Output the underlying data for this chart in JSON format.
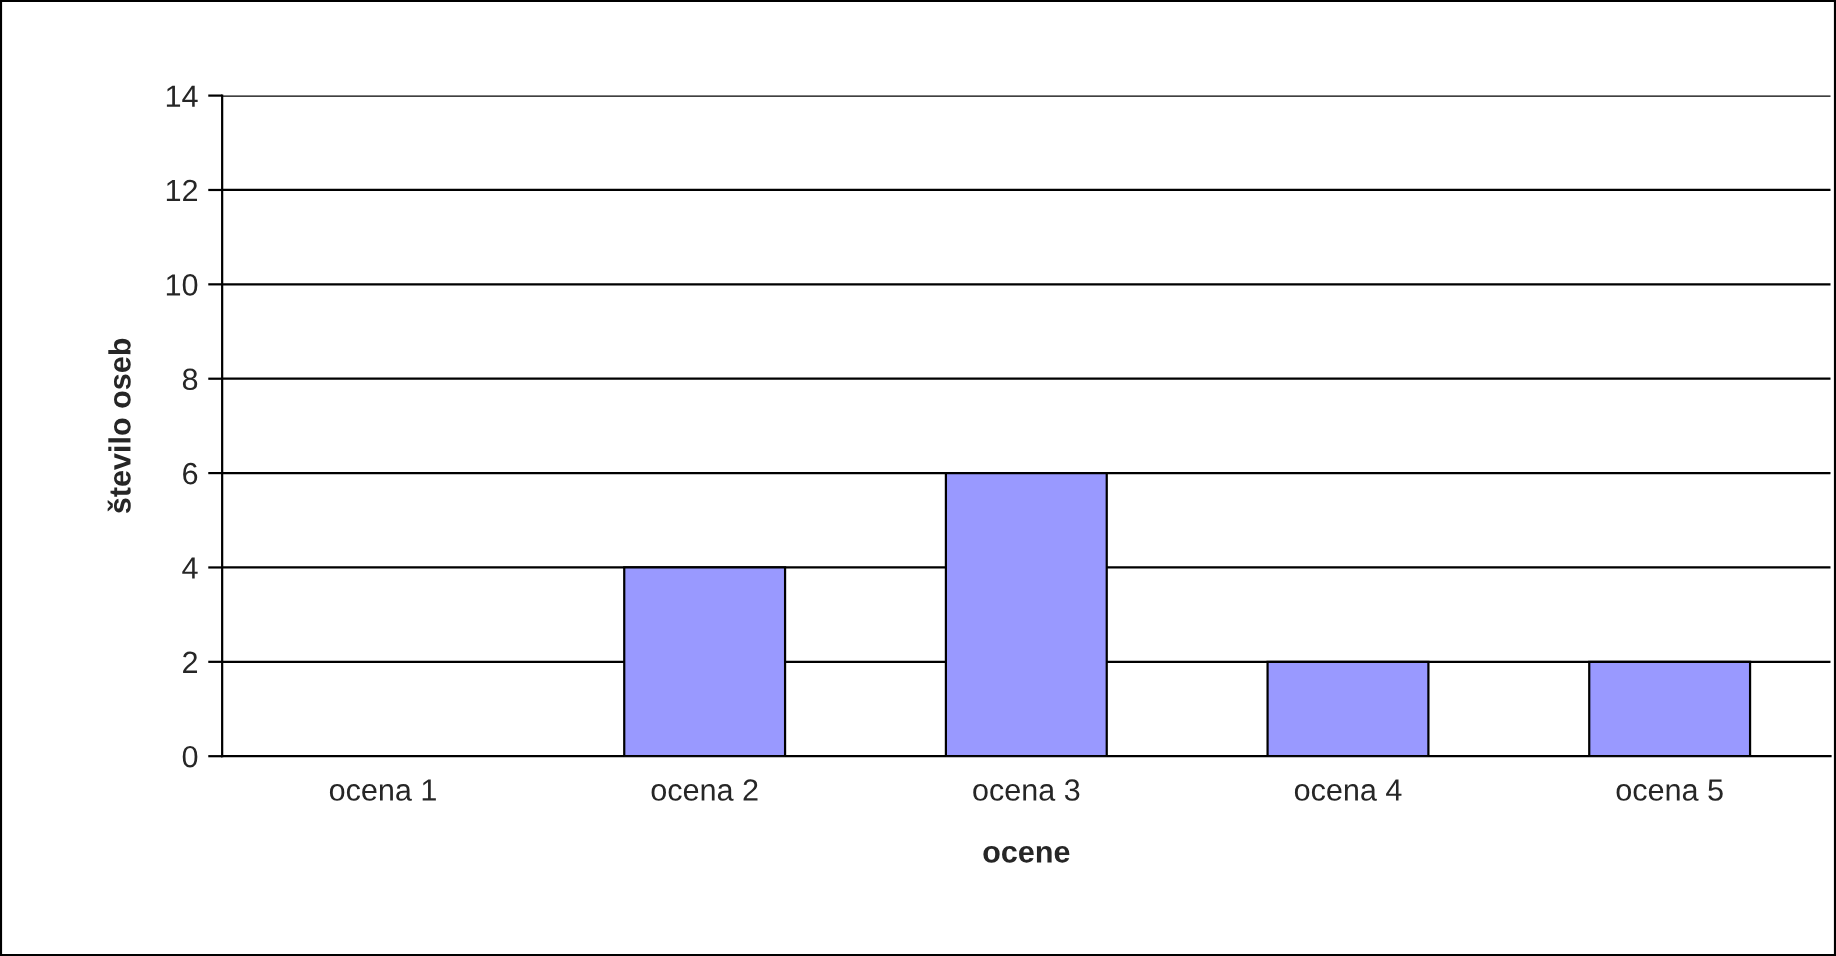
{
  "chart_data": {
    "type": "bar",
    "xlabel": "ocene",
    "ylabel": "število oseb",
    "categories": [
      "ocena 1",
      "ocena 2",
      "ocena 3",
      "ocena 4",
      "ocena 5"
    ],
    "values": [
      0,
      4,
      6,
      2,
      2
    ],
    "color": "#9999ff",
    "ylim": [
      0,
      14
    ],
    "yticks": [
      0,
      2,
      4,
      6,
      8,
      10,
      12,
      14
    ],
    "grid": "y",
    "legend": false
  }
}
